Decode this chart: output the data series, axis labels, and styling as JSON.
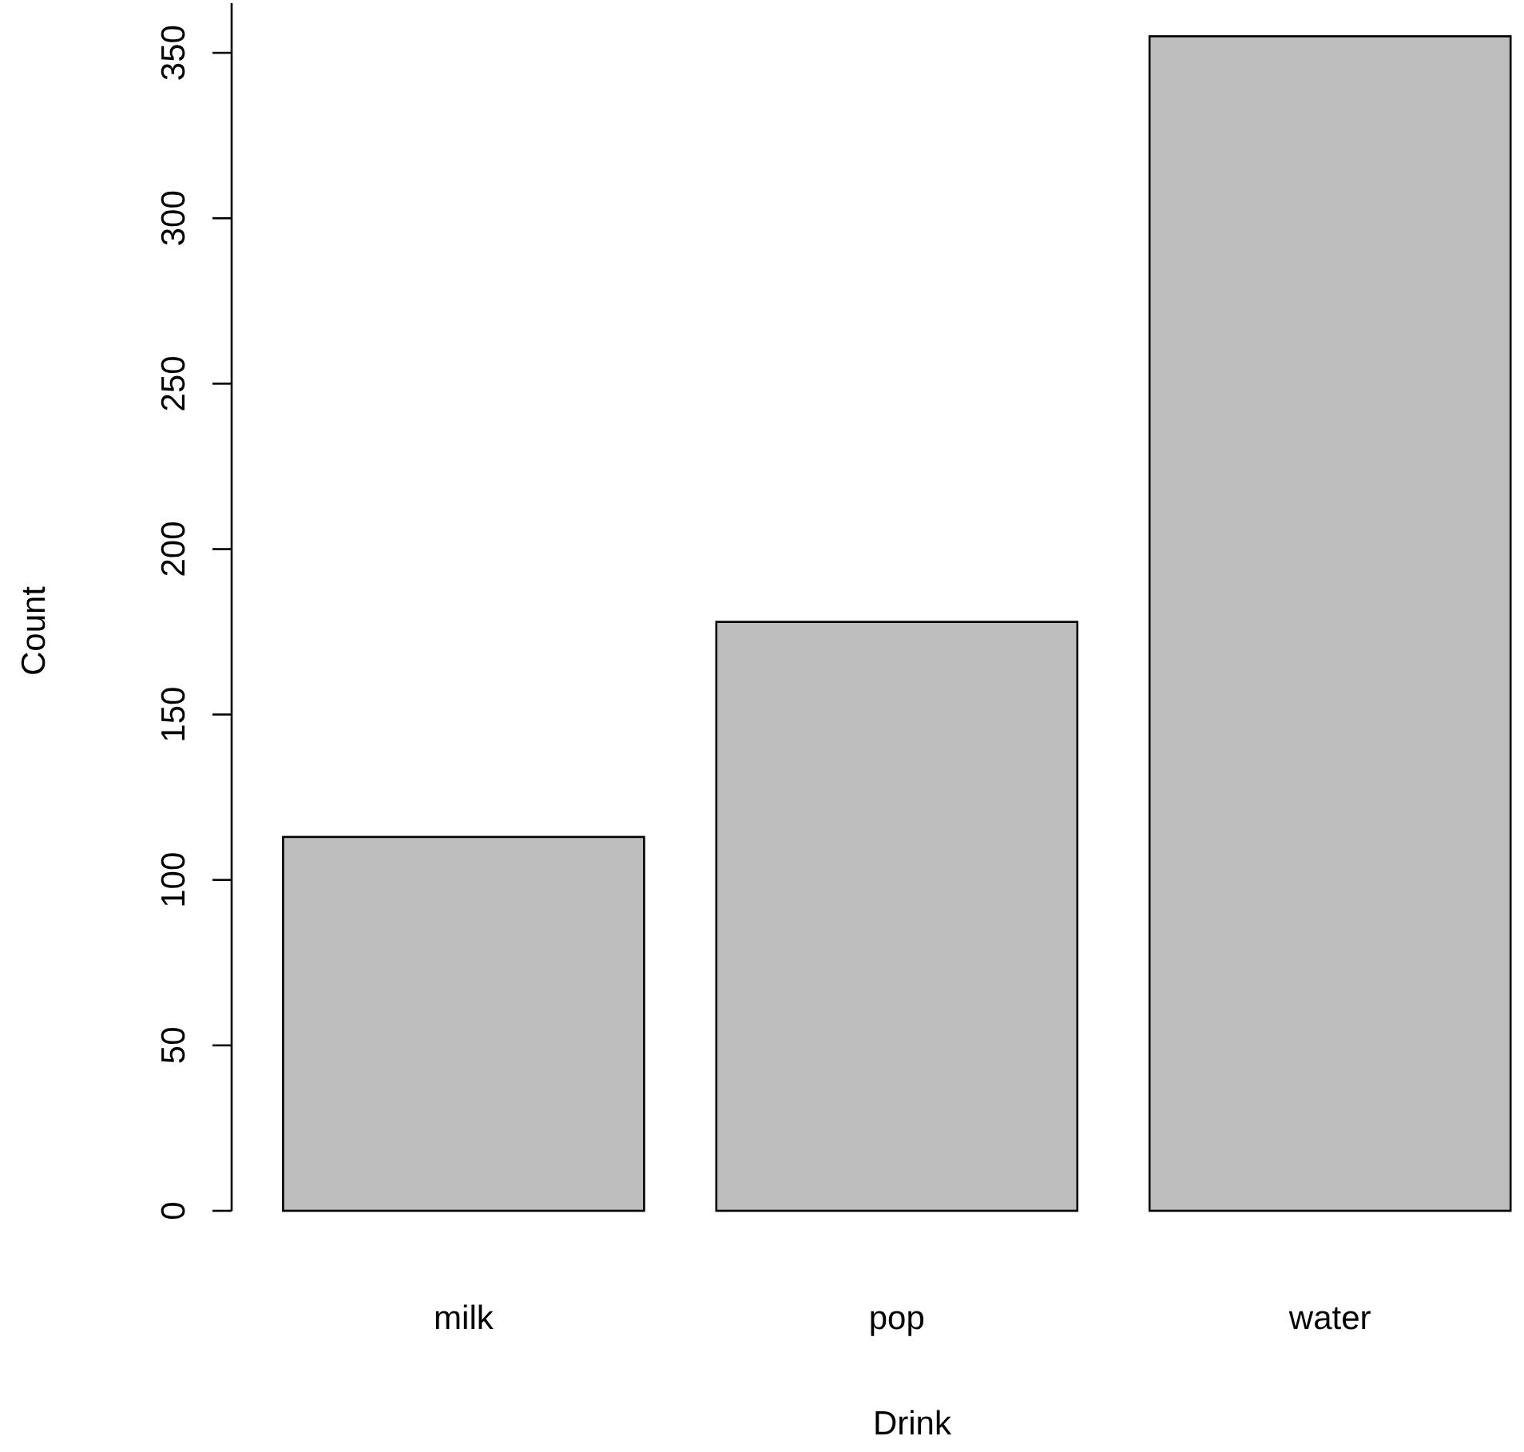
{
  "chart_data": {
    "type": "bar",
    "xlabel": "Drink",
    "ylabel": "Count",
    "categories": [
      "milk",
      "pop",
      "water"
    ],
    "values": [
      113,
      178,
      355
    ],
    "color": "#bebebe",
    "ylim": [
      0,
      365
    ],
    "yticks": [
      0,
      50,
      100,
      150,
      200,
      250,
      300,
      350
    ],
    "grid": false
  }
}
